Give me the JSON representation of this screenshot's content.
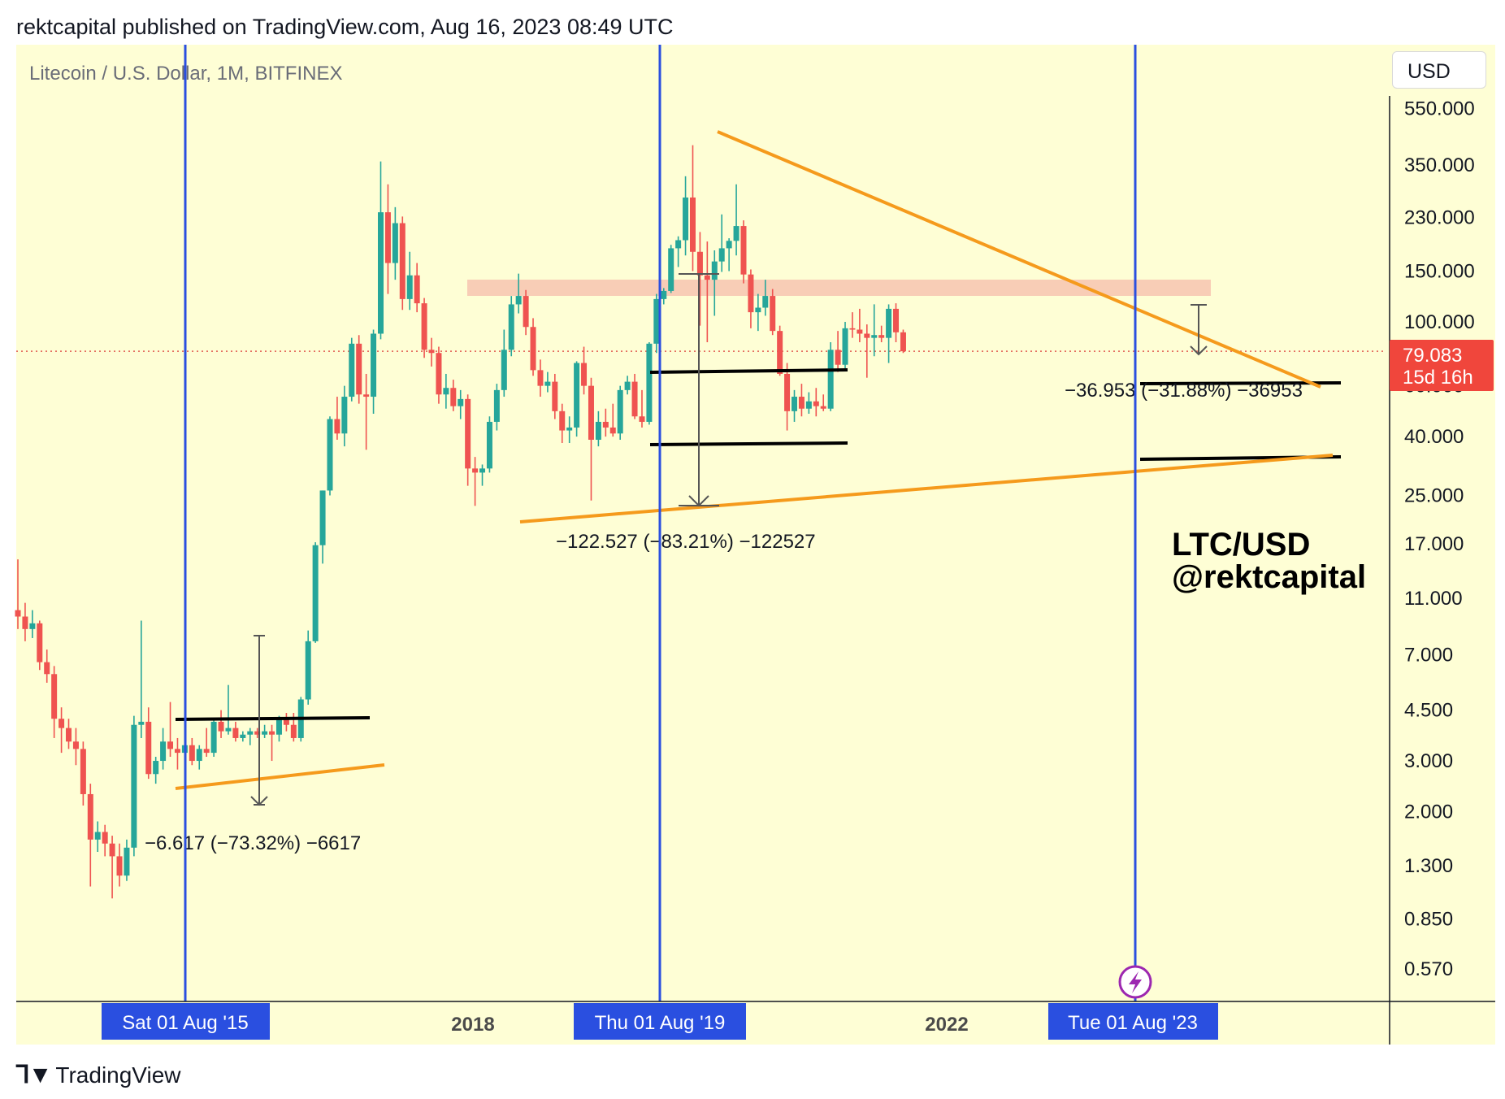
{
  "header": {
    "published": "rektcapital published on TradingView.com, Aug 16, 2023 08:49 UTC"
  },
  "footer": {
    "brand": "TradingView"
  },
  "toolbar": {
    "currency": "USD"
  },
  "chart_data": {
    "type": "candlestick",
    "title": "Litecoin / U.S. Dollar, 1M, BITFINEX",
    "watermark_line1": "LTC/USD",
    "watermark_line2": "@rektcapital",
    "scale": "log",
    "ylim": [
      0.5,
      600
    ],
    "y_ticks": [
      "550.000",
      "350.000",
      "230.000",
      "150.000",
      "100.000",
      "60.000",
      "40.000",
      "25.000",
      "17.000",
      "11.000",
      "7.000",
      "4.500",
      "3.000",
      "2.000",
      "1.300",
      "0.850",
      "0.570"
    ],
    "x_labels": [
      "2018",
      "2022"
    ],
    "date_markers": [
      "Sat 01 Aug '15",
      "Thu 01 Aug '19",
      "Tue 01 Aug '23"
    ],
    "last_price": {
      "value": "79.083",
      "countdown": "15d 16h"
    },
    "measurements": [
      "−6.617 (−73.32%) −6617",
      "−122.527 (−83.21%) −122527",
      "−36.953 (−31.88%) −36953"
    ],
    "colors": {
      "up": "#26a69a",
      "down": "#ef5350",
      "trendline": "#f59a1c",
      "marker": "#2a4fe0",
      "background": "#fefed5",
      "resistance_zone": "#f7c4b0"
    },
    "candles": [
      {
        "o": 10.0,
        "h": 15.0,
        "l": 8.6,
        "c": 9.5
      },
      {
        "o": 9.5,
        "h": 10.6,
        "l": 7.8,
        "c": 8.6
      },
      {
        "o": 8.6,
        "h": 10.0,
        "l": 8.0,
        "c": 9.0
      },
      {
        "o": 9.0,
        "h": 9.2,
        "l": 6.2,
        "c": 6.6
      },
      {
        "o": 6.6,
        "h": 7.3,
        "l": 5.6,
        "c": 6.0
      },
      {
        "o": 6.0,
        "h": 6.4,
        "l": 3.6,
        "c": 4.2
      },
      {
        "o": 4.2,
        "h": 4.6,
        "l": 3.2,
        "c": 3.9
      },
      {
        "o": 3.9,
        "h": 4.2,
        "l": 3.3,
        "c": 3.5
      },
      {
        "o": 3.5,
        "h": 3.9,
        "l": 2.9,
        "c": 3.3
      },
      {
        "o": 3.3,
        "h": 3.5,
        "l": 2.1,
        "c": 2.3
      },
      {
        "o": 2.3,
        "h": 2.5,
        "l": 1.1,
        "c": 1.6
      },
      {
        "o": 1.6,
        "h": 1.85,
        "l": 1.45,
        "c": 1.7
      },
      {
        "o": 1.7,
        "h": 1.8,
        "l": 1.4,
        "c": 1.55
      },
      {
        "o": 1.55,
        "h": 1.65,
        "l": 1.0,
        "c": 1.4
      },
      {
        "o": 1.4,
        "h": 1.55,
        "l": 1.1,
        "c": 1.2
      },
      {
        "o": 1.2,
        "h": 1.6,
        "l": 1.15,
        "c": 1.5
      },
      {
        "o": 1.5,
        "h": 4.3,
        "l": 1.4,
        "c": 4.0
      },
      {
        "o": 4.0,
        "h": 9.2,
        "l": 3.6,
        "c": 4.1
      },
      {
        "o": 4.1,
        "h": 4.6,
        "l": 2.6,
        "c": 2.7
      },
      {
        "o": 2.7,
        "h": 3.1,
        "l": 2.5,
        "c": 3.0
      },
      {
        "o": 3.0,
        "h": 3.9,
        "l": 2.8,
        "c": 3.5
      },
      {
        "o": 3.5,
        "h": 4.8,
        "l": 3.1,
        "c": 3.3
      },
      {
        "o": 3.3,
        "h": 3.6,
        "l": 2.8,
        "c": 3.2
      },
      {
        "o": 3.2,
        "h": 3.5,
        "l": 3.0,
        "c": 3.4
      },
      {
        "o": 3.4,
        "h": 3.6,
        "l": 2.9,
        "c": 3.0
      },
      {
        "o": 3.0,
        "h": 3.4,
        "l": 2.8,
        "c": 3.3
      },
      {
        "o": 3.3,
        "h": 3.9,
        "l": 3.1,
        "c": 3.2
      },
      {
        "o": 3.2,
        "h": 4.2,
        "l": 3.1,
        "c": 4.1
      },
      {
        "o": 4.1,
        "h": 4.5,
        "l": 3.6,
        "c": 3.8
      },
      {
        "o": 3.8,
        "h": 5.5,
        "l": 3.7,
        "c": 3.9
      },
      {
        "o": 3.9,
        "h": 4.1,
        "l": 3.5,
        "c": 3.6
      },
      {
        "o": 3.6,
        "h": 3.8,
        "l": 3.5,
        "c": 3.7
      },
      {
        "o": 3.7,
        "h": 3.9,
        "l": 3.4,
        "c": 3.8
      },
      {
        "o": 3.8,
        "h": 3.9,
        "l": 3.6,
        "c": 3.7
      },
      {
        "o": 3.7,
        "h": 4.0,
        "l": 3.6,
        "c": 3.8
      },
      {
        "o": 3.8,
        "h": 4.0,
        "l": 3.0,
        "c": 3.7
      },
      {
        "o": 3.7,
        "h": 4.3,
        "l": 3.5,
        "c": 4.2
      },
      {
        "o": 4.2,
        "h": 4.4,
        "l": 3.8,
        "c": 4.0
      },
      {
        "o": 4.0,
        "h": 4.4,
        "l": 3.5,
        "c": 3.6
      },
      {
        "o": 3.6,
        "h": 5.0,
        "l": 3.5,
        "c": 4.9
      },
      {
        "o": 4.9,
        "h": 8.5,
        "l": 4.7,
        "c": 7.8
      },
      {
        "o": 7.8,
        "h": 17.2,
        "l": 7.7,
        "c": 16.8
      },
      {
        "o": 16.8,
        "h": 26.0,
        "l": 14.5,
        "c": 26.0
      },
      {
        "o": 26.0,
        "h": 47.0,
        "l": 25.0,
        "c": 46.0
      },
      {
        "o": 46.0,
        "h": 55.0,
        "l": 39.0,
        "c": 41.0
      },
      {
        "o": 41.0,
        "h": 60.0,
        "l": 37.0,
        "c": 55.0
      },
      {
        "o": 55.0,
        "h": 88.0,
        "l": 53.0,
        "c": 84.0
      },
      {
        "o": 84.0,
        "h": 90.0,
        "l": 52.0,
        "c": 56.0
      },
      {
        "o": 56.0,
        "h": 66.0,
        "l": 36.0,
        "c": 55.0
      },
      {
        "o": 55.0,
        "h": 94.0,
        "l": 48.0,
        "c": 91.0
      },
      {
        "o": 91.0,
        "h": 360.0,
        "l": 87.0,
        "c": 240.0
      },
      {
        "o": 240.0,
        "h": 300.0,
        "l": 125.0,
        "c": 160.0
      },
      {
        "o": 160.0,
        "h": 250.0,
        "l": 140.0,
        "c": 220.0
      },
      {
        "o": 220.0,
        "h": 232.0,
        "l": 110.0,
        "c": 120.0
      },
      {
        "o": 120.0,
        "h": 175.0,
        "l": 110.0,
        "c": 145.0
      },
      {
        "o": 145.0,
        "h": 160.0,
        "l": 108.0,
        "c": 116.0
      },
      {
        "o": 116.0,
        "h": 121.0,
        "l": 75.0,
        "c": 80.0
      },
      {
        "o": 80.0,
        "h": 88.0,
        "l": 70.0,
        "c": 78.0
      },
      {
        "o": 78.0,
        "h": 82.0,
        "l": 52.0,
        "c": 56.0
      },
      {
        "o": 56.0,
        "h": 66.0,
        "l": 50.0,
        "c": 59.0
      },
      {
        "o": 59.0,
        "h": 63.0,
        "l": 49.0,
        "c": 51.0
      },
      {
        "o": 51.0,
        "h": 58.0,
        "l": 46.0,
        "c": 54.0
      },
      {
        "o": 54.0,
        "h": 56.0,
        "l": 27.0,
        "c": 31.0
      },
      {
        "o": 31.0,
        "h": 34.0,
        "l": 23.0,
        "c": 30.0
      },
      {
        "o": 30.0,
        "h": 32.0,
        "l": 27.0,
        "c": 31.0
      },
      {
        "o": 31.0,
        "h": 47.0,
        "l": 30.0,
        "c": 45.0
      },
      {
        "o": 45.0,
        "h": 61.0,
        "l": 42.0,
        "c": 58.0
      },
      {
        "o": 58.0,
        "h": 94.0,
        "l": 55.0,
        "c": 80.0
      },
      {
        "o": 80.0,
        "h": 123.0,
        "l": 76.0,
        "c": 115.0
      },
      {
        "o": 115.0,
        "h": 147.0,
        "l": 107.0,
        "c": 123.0
      },
      {
        "o": 123.0,
        "h": 129.0,
        "l": 90.0,
        "c": 96.0
      },
      {
        "o": 96.0,
        "h": 103.0,
        "l": 65.0,
        "c": 68.0
      },
      {
        "o": 68.0,
        "h": 74.0,
        "l": 55.0,
        "c": 60.0
      },
      {
        "o": 60.0,
        "h": 67.0,
        "l": 57.0,
        "c": 62.0
      },
      {
        "o": 62.0,
        "h": 66.0,
        "l": 46.0,
        "c": 49.0
      },
      {
        "o": 49.0,
        "h": 52.0,
        "l": 38.0,
        "c": 42.0
      },
      {
        "o": 42.0,
        "h": 47.0,
        "l": 38.0,
        "c": 43.0
      },
      {
        "o": 43.0,
        "h": 73.0,
        "l": 40.0,
        "c": 72.0
      },
      {
        "o": 72.0,
        "h": 82.0,
        "l": 56.0,
        "c": 60.0
      },
      {
        "o": 60.0,
        "h": 64.0,
        "l": 24.0,
        "c": 39.0
      },
      {
        "o": 39.0,
        "h": 49.0,
        "l": 37.0,
        "c": 45.0
      },
      {
        "o": 45.0,
        "h": 50.0,
        "l": 40.0,
        "c": 43.0
      },
      {
        "o": 43.0,
        "h": 52.0,
        "l": 40.0,
        "c": 41.0
      },
      {
        "o": 41.0,
        "h": 60.0,
        "l": 39.0,
        "c": 58.0
      },
      {
        "o": 58.0,
        "h": 65.0,
        "l": 56.0,
        "c": 62.0
      },
      {
        "o": 62.0,
        "h": 66.0,
        "l": 46.0,
        "c": 47.0
      },
      {
        "o": 47.0,
        "h": 58.0,
        "l": 43.0,
        "c": 45.0
      },
      {
        "o": 45.0,
        "h": 85.0,
        "l": 44.0,
        "c": 84.0
      },
      {
        "o": 84.0,
        "h": 125.0,
        "l": 78.0,
        "c": 120.0
      },
      {
        "o": 120.0,
        "h": 131.0,
        "l": 115.0,
        "c": 128.0
      },
      {
        "o": 128.0,
        "h": 185.0,
        "l": 126.0,
        "c": 180.0
      },
      {
        "o": 180.0,
        "h": 198.0,
        "l": 155.0,
        "c": 192.0
      },
      {
        "o": 192.0,
        "h": 320.0,
        "l": 170.0,
        "c": 270.0
      },
      {
        "o": 270.0,
        "h": 410.0,
        "l": 150.0,
        "c": 175.0
      },
      {
        "o": 175.0,
        "h": 205.0,
        "l": 97.0,
        "c": 145.0
      },
      {
        "o": 145.0,
        "h": 190.0,
        "l": 85.0,
        "c": 140.0
      },
      {
        "o": 140.0,
        "h": 177.0,
        "l": 105.0,
        "c": 162.0
      },
      {
        "o": 162.0,
        "h": 236.0,
        "l": 149.0,
        "c": 180.0
      },
      {
        "o": 180.0,
        "h": 195.0,
        "l": 150.0,
        "c": 191.0
      },
      {
        "o": 191.0,
        "h": 300.0,
        "l": 170.0,
        "c": 215.0
      },
      {
        "o": 215.0,
        "h": 225.0,
        "l": 136.0,
        "c": 146.0
      },
      {
        "o": 146.0,
        "h": 152.0,
        "l": 95.0,
        "c": 108.0
      },
      {
        "o": 108.0,
        "h": 125.0,
        "l": 93.0,
        "c": 112.0
      },
      {
        "o": 112.0,
        "h": 140.0,
        "l": 105.0,
        "c": 123.0
      },
      {
        "o": 123.0,
        "h": 130.0,
        "l": 90.0,
        "c": 93.0
      },
      {
        "o": 93.0,
        "h": 97.0,
        "l": 65.0,
        "c": 66.0
      },
      {
        "o": 66.0,
        "h": 72.0,
        "l": 42.0,
        "c": 49.0
      },
      {
        "o": 49.0,
        "h": 58.0,
        "l": 45.0,
        "c": 55.0
      },
      {
        "o": 55.0,
        "h": 61.0,
        "l": 47.0,
        "c": 50.0
      },
      {
        "o": 50.0,
        "h": 57.0,
        "l": 48.0,
        "c": 53.0
      },
      {
        "o": 53.0,
        "h": 59.0,
        "l": 47.0,
        "c": 51.0
      },
      {
        "o": 51.0,
        "h": 56.0,
        "l": 49.0,
        "c": 50.0
      },
      {
        "o": 50.0,
        "h": 85.0,
        "l": 49.0,
        "c": 80.0
      },
      {
        "o": 80.0,
        "h": 93.0,
        "l": 67.0,
        "c": 71.0
      },
      {
        "o": 71.0,
        "h": 100.0,
        "l": 69.0,
        "c": 95.0
      },
      {
        "o": 95.0,
        "h": 108.0,
        "l": 88.0,
        "c": 94.0
      },
      {
        "o": 94.0,
        "h": 111.0,
        "l": 85.0,
        "c": 91.0
      },
      {
        "o": 91.0,
        "h": 98.0,
        "l": 64.0,
        "c": 88.0
      },
      {
        "o": 88.0,
        "h": 115.0,
        "l": 76.0,
        "c": 90.0
      },
      {
        "o": 90.0,
        "h": 97.0,
        "l": 85.0,
        "c": 88.0
      },
      {
        "o": 88.0,
        "h": 115.0,
        "l": 72.0,
        "c": 111.0
      },
      {
        "o": 111.0,
        "h": 116.0,
        "l": 85.0,
        "c": 92.0
      },
      {
        "o": 92.0,
        "h": 94.0,
        "l": 78.0,
        "c": 79.083
      }
    ]
  }
}
